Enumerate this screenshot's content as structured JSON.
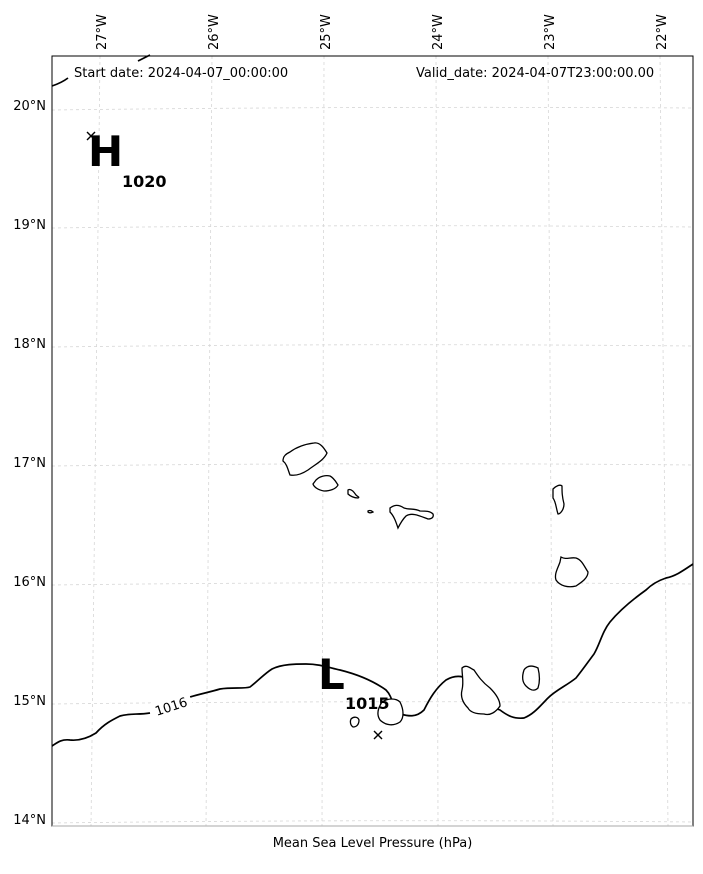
{
  "header": {
    "start_date": "Start date: 2024-04-07_00:00:00",
    "valid_date": "Valid_date: 2024-04-07T23:00:00.00"
  },
  "footer": {
    "xlabel": "Mean Sea Level Pressure (hPa)"
  },
  "axes": {
    "lon_ticks": [
      "27°W",
      "26°W",
      "25°W",
      "24°W",
      "23°W",
      "22°W"
    ],
    "lat_ticks": [
      "20°N",
      "19°N",
      "18°N",
      "17°N",
      "16°N",
      "15°N",
      "14°N"
    ]
  },
  "pressure_centers": [
    {
      "type": "H",
      "value": "1020"
    },
    {
      "type": "L",
      "value": "1015"
    }
  ],
  "contour_labels": [
    "1016"
  ]
}
